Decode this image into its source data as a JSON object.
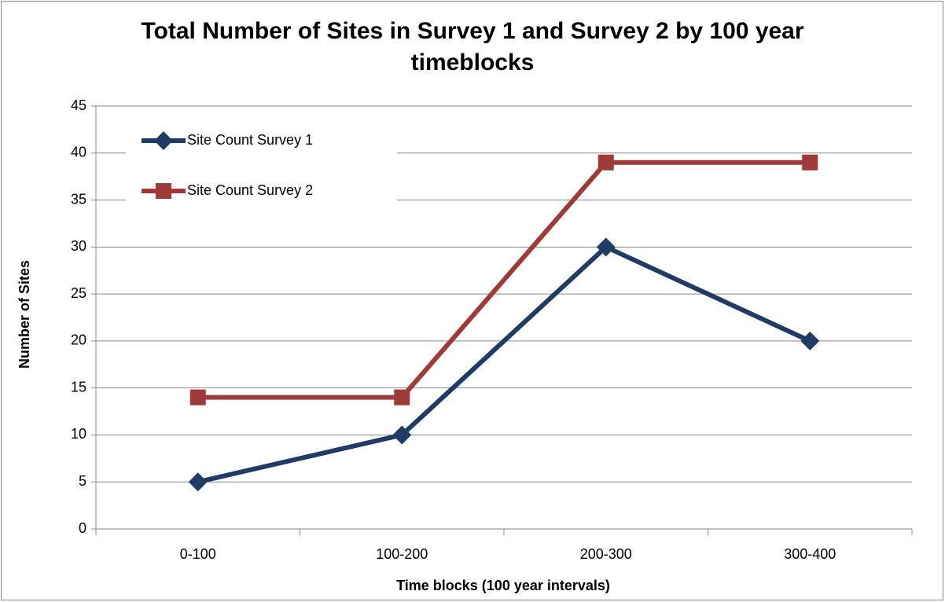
{
  "chart_data": {
    "type": "line",
    "title": "Total Number of Sites in Survey 1 and Survey 2 by 100 year timeblocks",
    "x_label": "Time blocks (100 year intervals)",
    "y_label": "Number of Sites",
    "categories": [
      "0-100",
      "100-200",
      "200-300",
      "300-400"
    ],
    "series": [
      {
        "name": "Site Count Survey 1",
        "color": "#1f3b66",
        "marker": "diamond",
        "values": [
          5,
          10,
          30,
          20
        ]
      },
      {
        "name": "Site Count Survey 2",
        "color": "#9e3a38",
        "marker": "square",
        "values": [
          14,
          14,
          39,
          39
        ]
      }
    ],
    "ylim": [
      0,
      45
    ],
    "yticks": [
      0,
      5,
      10,
      15,
      20,
      25,
      30,
      35,
      40,
      45
    ],
    "grid": true,
    "legend": "upper left"
  }
}
